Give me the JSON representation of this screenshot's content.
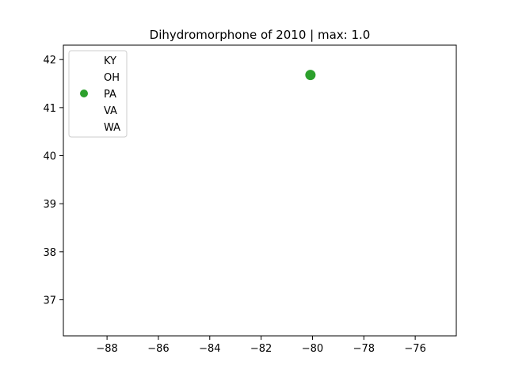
{
  "chart_data": {
    "type": "scatter",
    "title": "Dihydromorphone of 2010 | max: 1.0",
    "xlabel": "",
    "ylabel": "",
    "xlim": [
      -89.7,
      -74.4
    ],
    "ylim": [
      36.25,
      42.3
    ],
    "xticks": [
      -88,
      -86,
      -84,
      -82,
      -80,
      -78,
      -76
    ],
    "xtick_labels": [
      "−88",
      "−86",
      "−84",
      "−82",
      "−80",
      "−78",
      "−76"
    ],
    "yticks": [
      37,
      38,
      39,
      40,
      41,
      42
    ],
    "ytick_labels": [
      "37",
      "38",
      "39",
      "40",
      "41",
      "42"
    ],
    "grid": false,
    "legend_position": "top-left",
    "series": [
      {
        "name": "KY",
        "color": "#1f77b4",
        "points": []
      },
      {
        "name": "OH",
        "color": "#ff7f0e",
        "points": []
      },
      {
        "name": "PA",
        "color": "#2ca02c",
        "points": [
          {
            "x": -80.08,
            "y": 41.68
          }
        ]
      },
      {
        "name": "VA",
        "color": "#d62728",
        "points": []
      },
      {
        "name": "WA",
        "color": "#9467bd",
        "points": []
      }
    ]
  }
}
